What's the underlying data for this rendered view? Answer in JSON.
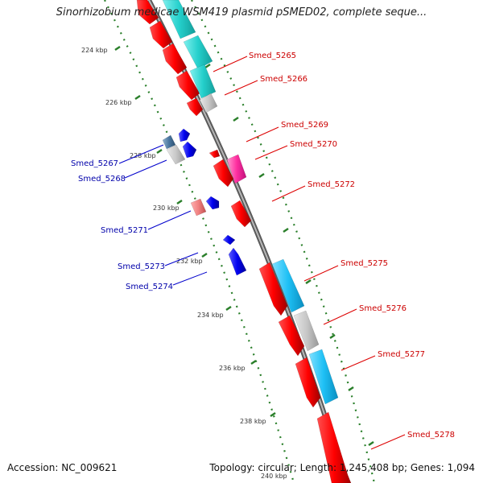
{
  "title": "Sinorhizobium medicae WSM419 plasmid pSMED02, complete seque...",
  "footer": {
    "accession": "Accession: NC_009621",
    "summary": "Topology: circular; Length: 1,245,408 bp; Genes: 1,094"
  },
  "colors": {
    "forward_label": "#cc0000",
    "reverse_label": "#0000aa",
    "tick_marks": "#2a7f2a",
    "backbone": "#808080"
  },
  "ticks": [
    {
      "label": "224 kbp",
      "kbp": 224
    },
    {
      "label": "226 kbp",
      "kbp": 226
    },
    {
      "label": "228 kbp",
      "kbp": 228
    },
    {
      "label": "230 kbp",
      "kbp": 230
    },
    {
      "label": "232 kbp",
      "kbp": 232
    },
    {
      "label": "234 kbp",
      "kbp": 234
    },
    {
      "label": "236 kbp",
      "kbp": 236
    },
    {
      "label": "238 kbp",
      "kbp": 238
    },
    {
      "label": "240 kbp",
      "kbp": 240
    }
  ],
  "genes_forward": [
    {
      "label": "Smed_5265"
    },
    {
      "label": "Smed_5266"
    },
    {
      "label": "Smed_5269"
    },
    {
      "label": "Smed_5270"
    },
    {
      "label": "Smed_5272"
    },
    {
      "label": "Smed_5275"
    },
    {
      "label": "Smed_5276"
    },
    {
      "label": "Smed_5277"
    },
    {
      "label": "Smed_5278"
    }
  ],
  "genes_reverse": [
    {
      "label": "Smed_5267"
    },
    {
      "label": "Smed_5268"
    },
    {
      "label": "Smed_5271"
    },
    {
      "label": "Smed_5273"
    },
    {
      "label": "Smed_5274"
    }
  ]
}
